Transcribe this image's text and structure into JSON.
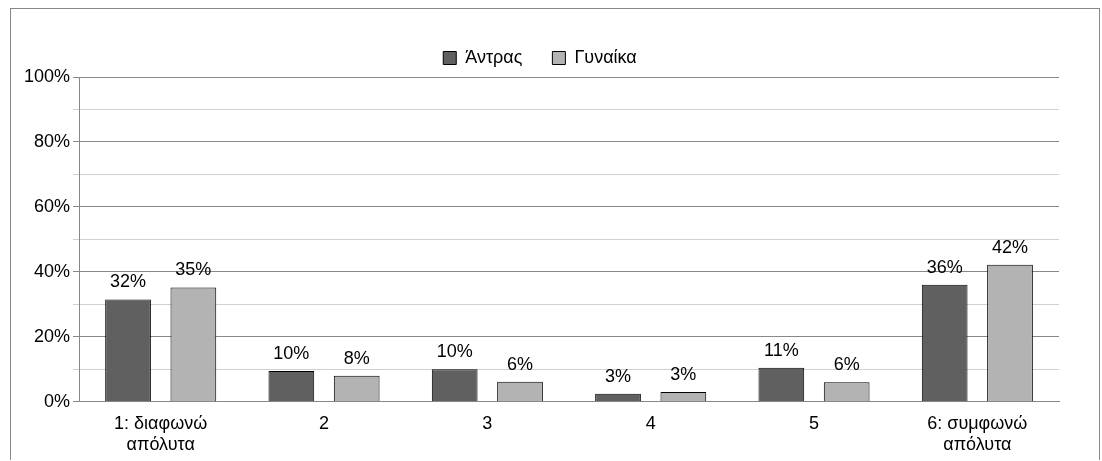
{
  "chart_data": {
    "type": "bar",
    "categories": [
      "1: διαφωνώ απόλυτα",
      "2",
      "3",
      "4",
      "5",
      "6: συμφωνώ απόλυτα"
    ],
    "series": [
      {
        "name": "Άντρας",
        "color": "#606060",
        "values": [
          31.5,
          9.5,
          10,
          2.5,
          10.5,
          36
        ],
        "value_labels": [
          "32%",
          "10%",
          "10%",
          "3%",
          "11%",
          "36%"
        ]
      },
      {
        "name": "Γυναίκα",
        "color": "#b3b3b3",
        "values": [
          35.2,
          8,
          6.2,
          3,
          6,
          42.2
        ],
        "value_labels": [
          "35%",
          "8%",
          "6%",
          "3%",
          "6%",
          "42%"
        ]
      }
    ],
    "ylim": [
      0,
      100
    ],
    "yticks": [
      {
        "value": 0,
        "label": "0%"
      },
      {
        "value": 10,
        "label": null
      },
      {
        "value": 20,
        "label": "20%"
      },
      {
        "value": 30,
        "label": null
      },
      {
        "value": 40,
        "label": "40%"
      },
      {
        "value": 50,
        "label": null
      },
      {
        "value": 60,
        "label": "60%"
      },
      {
        "value": 70,
        "label": null
      },
      {
        "value": 80,
        "label": "80%"
      },
      {
        "value": 90,
        "label": null
      },
      {
        "value": 100,
        "label": "100%"
      }
    ],
    "grid": "y",
    "legend": "top"
  }
}
